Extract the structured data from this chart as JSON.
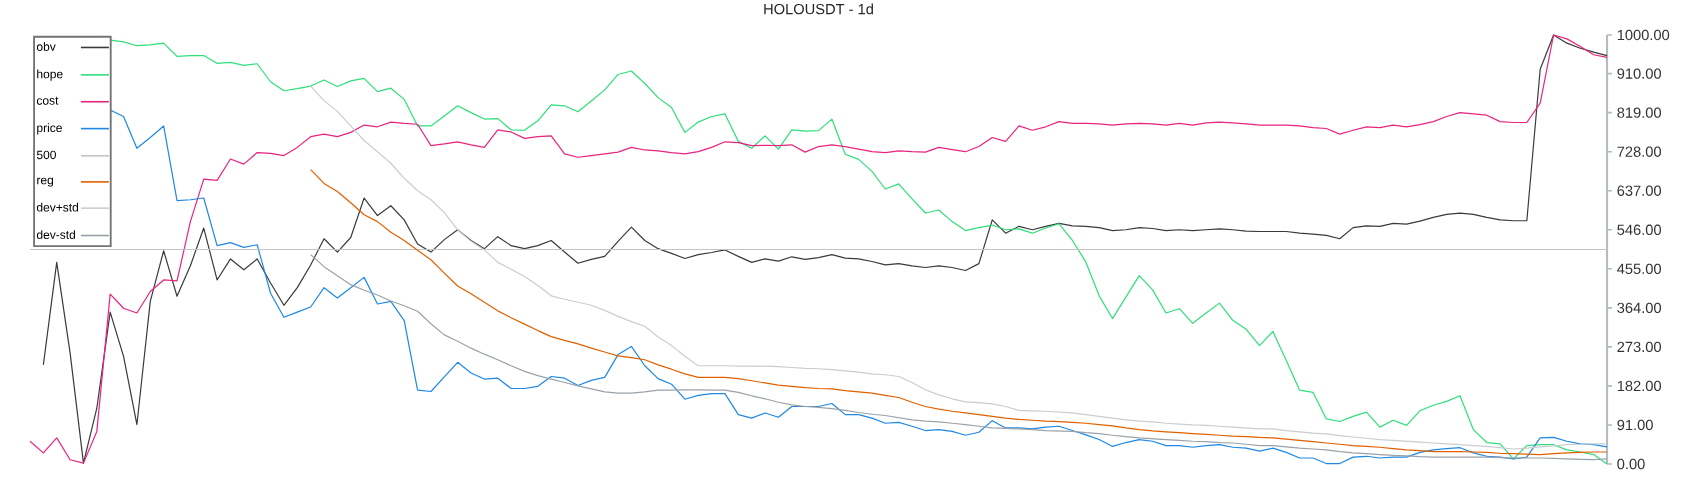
{
  "chart_data": {
    "type": "line",
    "title": "HOLOUSDT - 1d",
    "categories": [
      null,
      null,
      null,
      null,
      null,
      null,
      null,
      null,
      null,
      null,
      null,
      null,
      null,
      null,
      null,
      null,
      null,
      null,
      null,
      null,
      null,
      null,
      null,
      null,
      null,
      null,
      null,
      null,
      null,
      null,
      null,
      null,
      null,
      null,
      null,
      null,
      null,
      null,
      null,
      null,
      null,
      null,
      null,
      null,
      null,
      null,
      null,
      null,
      null,
      null,
      null,
      null,
      null,
      null,
      null,
      null,
      null,
      null,
      null,
      null,
      null,
      null,
      null,
      null,
      null,
      null,
      null,
      null,
      null,
      null,
      null,
      null,
      null,
      null,
      null,
      null,
      null,
      null,
      null,
      null,
      null,
      null,
      null,
      null,
      null,
      null,
      null,
      null,
      null,
      null,
      null,
      null,
      null,
      null,
      null,
      null,
      null,
      null,
      null,
      null,
      null,
      null,
      null,
      null,
      null,
      null,
      null,
      null,
      null,
      null,
      null,
      null,
      null,
      null,
      null,
      null,
      null,
      null,
      null
    ],
    "ylim": [
      0,
      1000
    ],
    "yticks": [
      {
        "value": 0,
        "label": "0.00"
      },
      {
        "value": 91,
        "label": "91.00"
      },
      {
        "value": 182,
        "label": "182.00"
      },
      {
        "value": 273,
        "label": "273.00"
      },
      {
        "value": 364,
        "label": "364.00"
      },
      {
        "value": 455,
        "label": "455.00"
      },
      {
        "value": 546,
        "label": "546.00"
      },
      {
        "value": 637,
        "label": "637.00"
      },
      {
        "value": 728,
        "label": "728.00"
      },
      {
        "value": 819,
        "label": "819.00"
      },
      {
        "value": 910,
        "label": "910.00"
      },
      {
        "value": 1000,
        "label": "1000.00"
      }
    ],
    "tick_labels": "y",
    "legend": "top left",
    "marker": "none",
    "line_style": "solid",
    "series": [
      {
        "name": "obv",
        "color": "#3a3a3a",
        "values": [
          null,
          231,
          470,
          259,
          2,
          130,
          354,
          251,
          92,
          379,
          497,
          391,
          462,
          550,
          429,
          478,
          453,
          478,
          422,
          370,
          411,
          464,
          525,
          494,
          528,
          620,
          579,
          602,
          569,
          513,
          494,
          523,
          546,
          521,
          502,
          530,
          509,
          502,
          509,
          521,
          494,
          468,
          477,
          484,
          519,
          552,
          521,
          502,
          491,
          479,
          488,
          493,
          499,
          484,
          470,
          478,
          473,
          483,
          477,
          481,
          488,
          480,
          478,
          472,
          464,
          467,
          462,
          458,
          462,
          458,
          451,
          467,
          569,
          538,
          554,
          546,
          554,
          561,
          555,
          554,
          551,
          544,
          546,
          551,
          549,
          544,
          546,
          544,
          546,
          548,
          546,
          543,
          542,
          542,
          542,
          538,
          536,
          533,
          525,
          551,
          555,
          554,
          561,
          559,
          566,
          575,
          582,
          585,
          582,
          575,
          569,
          567,
          567,
          920,
          1000,
          981,
          969,
          960,
          952
        ]
      },
      {
        "name": "hope",
        "color": "#2edf7a",
        "values": [
          null,
          null,
          null,
          null,
          null,
          null,
          988,
          984,
          975,
          977,
          981,
          950,
          952,
          952,
          934,
          936,
          929,
          933,
          891,
          870,
          875,
          881,
          895,
          880,
          893,
          899,
          868,
          876,
          850,
          788,
          788,
          811,
          835,
          819,
          804,
          805,
          779,
          778,
          800,
          837,
          835,
          821,
          846,
          872,
          908,
          916,
          887,
          854,
          831,
          773,
          797,
          810,
          816,
          752,
          736,
          765,
          734,
          779,
          776,
          777,
          804,
          722,
          710,
          682,
          641,
          653,
          618,
          585,
          592,
          565,
          544,
          551,
          557,
          546,
          548,
          538,
          550,
          560,
          521,
          471,
          392,
          339,
          389,
          439,
          406,
          352,
          362,
          328,
          352,
          375,
          335,
          314,
          276,
          309,
          241,
          172,
          167,
          105,
          99,
          111,
          121,
          86,
          102,
          90,
          124,
          137,
          146,
          159,
          80,
          50,
          47,
          12,
          43,
          45,
          45,
          33,
          28,
          22,
          0
        ]
      },
      {
        "name": "cost",
        "color": "#e8247e",
        "values": [
          53,
          26,
          61,
          10,
          2,
          76,
          396,
          363,
          352,
          402,
          429,
          427,
          565,
          664,
          661,
          711,
          699,
          726,
          724,
          719,
          738,
          763,
          769,
          763,
          773,
          790,
          786,
          797,
          794,
          792,
          742,
          746,
          751,
          744,
          738,
          779,
          774,
          759,
          763,
          765,
          723,
          715,
          719,
          723,
          727,
          738,
          732,
          730,
          726,
          723,
          728,
          738,
          751,
          749,
          742,
          743,
          742,
          744,
          727,
          740,
          744,
          740,
          734,
          728,
          726,
          730,
          728,
          727,
          738,
          733,
          728,
          740,
          761,
          752,
          788,
          778,
          786,
          798,
          794,
          794,
          793,
          790,
          793,
          794,
          793,
          790,
          794,
          790,
          795,
          797,
          795,
          793,
          790,
          790,
          790,
          788,
          784,
          782,
          769,
          778,
          786,
          784,
          790,
          786,
          791,
          798,
          810,
          819,
          816,
          813,
          798,
          796,
          796,
          841,
          1000,
          991,
          973,
          954,
          948
        ]
      },
      {
        "name": "price",
        "color": "#1e88e5",
        "values": [
          null,
          null,
          null,
          null,
          null,
          null,
          825,
          810,
          736,
          761,
          788,
          614,
          616,
          620,
          509,
          516,
          505,
          511,
          398,
          342,
          354,
          366,
          411,
          387,
          411,
          435,
          373,
          379,
          334,
          172,
          169,
          203,
          237,
          212,
          198,
          200,
          176,
          176,
          181,
          204,
          200,
          183,
          195,
          202,
          255,
          274,
          229,
          199,
          186,
          151,
          160,
          164,
          164,
          115,
          107,
          119,
          109,
          134,
          134,
          134,
          141,
          115,
          115,
          107,
          95,
          97,
          88,
          78,
          80,
          76,
          67,
          74,
          101,
          84,
          84,
          82,
          86,
          88,
          78,
          68,
          57,
          41,
          50,
          57,
          53,
          43,
          43,
          39,
          43,
          45,
          39,
          37,
          30,
          37,
          27,
          14,
          14,
          1,
          1,
          16,
          18,
          14,
          16,
          16,
          27,
          33,
          36,
          38,
          26,
          18,
          16,
          12,
          16,
          61,
          62,
          53,
          47,
          45,
          40
        ]
      },
      {
        "name": "500",
        "color": "#c4c4c4",
        "values": [
          500,
          500,
          500,
          500,
          500,
          500,
          500,
          500,
          500,
          500,
          500,
          500,
          500,
          500,
          500,
          500,
          500,
          500,
          500,
          500,
          500,
          500,
          500,
          500,
          500,
          500,
          500,
          500,
          500,
          500,
          500,
          500,
          500,
          500,
          500,
          500,
          500,
          500,
          500,
          500,
          500,
          500,
          500,
          500,
          500,
          500,
          500,
          500,
          500,
          500,
          500,
          500,
          500,
          500,
          500,
          500,
          500,
          500,
          500,
          500,
          500,
          500,
          500,
          500,
          500,
          500,
          500,
          500,
          500,
          500,
          500,
          500,
          500,
          500,
          500,
          500,
          500,
          500,
          500,
          500,
          500,
          500,
          500,
          500,
          500,
          500,
          500,
          500,
          500,
          500,
          500,
          500,
          500,
          500,
          500,
          500,
          500,
          500,
          500,
          500,
          500,
          500,
          500,
          500,
          500,
          500,
          500,
          500,
          500,
          500,
          500,
          500,
          500,
          500,
          500,
          500,
          500,
          500,
          500
        ]
      },
      {
        "name": "reg",
        "color": "#e06000",
        "values": [
          null,
          null,
          null,
          null,
          null,
          null,
          null,
          null,
          null,
          null,
          null,
          null,
          null,
          null,
          null,
          null,
          null,
          null,
          null,
          null,
          null,
          686,
          654,
          635,
          609,
          581,
          565,
          540,
          521,
          498,
          476,
          445,
          415,
          397,
          377,
          357,
          341,
          326,
          311,
          297,
          288,
          280,
          270,
          261,
          252,
          248,
          243,
          231,
          221,
          210,
          202,
          202,
          202,
          199,
          194,
          189,
          184,
          181,
          178,
          176,
          175,
          171,
          168,
          165,
          160,
          155,
          144,
          134,
          128,
          123,
          119,
          115,
          111,
          107,
          104,
          102,
          100,
          99,
          97,
          95,
          92,
          89,
          84,
          80,
          77,
          75,
          73,
          71,
          69,
          67,
          65,
          64,
          62,
          61,
          58,
          55,
          52,
          49,
          46,
          43,
          41,
          39,
          36,
          33,
          31,
          29,
          29,
          29,
          28,
          27,
          25,
          24,
          23,
          22,
          24,
          26,
          27,
          28,
          28
        ]
      },
      {
        "name": "dev+std",
        "color": "#c9cdd1",
        "values": [
          null,
          null,
          null,
          null,
          null,
          null,
          null,
          null,
          null,
          null,
          null,
          null,
          null,
          null,
          null,
          null,
          null,
          null,
          null,
          null,
          null,
          881,
          847,
          822,
          788,
          754,
          728,
          701,
          666,
          637,
          616,
          586,
          546,
          519,
          499,
          470,
          454,
          437,
          416,
          392,
          384,
          377,
          370,
          358,
          344,
          332,
          321,
          296,
          276,
          251,
          229,
          229,
          229,
          228,
          228,
          228,
          227,
          225,
          223,
          222,
          220,
          217,
          214,
          210,
          208,
          204,
          190,
          173,
          161,
          152,
          145,
          143,
          140,
          134,
          125,
          124,
          123,
          121,
          119,
          115,
          111,
          107,
          103,
          100,
          98,
          95,
          93,
          91,
          90,
          88,
          86,
          84,
          82,
          82,
          78,
          75,
          72,
          70,
          66,
          63,
          60,
          57,
          55,
          53,
          51,
          49,
          47,
          45,
          43,
          41,
          38,
          35,
          37,
          40,
          42,
          45,
          46,
          47,
          47
        ]
      },
      {
        "name": "dev-std",
        "color": "#9aa2a9",
        "values": [
          null,
          null,
          null,
          null,
          null,
          null,
          null,
          null,
          null,
          null,
          null,
          null,
          null,
          null,
          null,
          null,
          null,
          null,
          null,
          null,
          null,
          488,
          460,
          439,
          418,
          405,
          394,
          380,
          369,
          356,
          327,
          301,
          286,
          270,
          256,
          243,
          229,
          216,
          206,
          198,
          190,
          182,
          175,
          168,
          165,
          165,
          168,
          172,
          172,
          173,
          173,
          172,
          172,
          167,
          159,
          152,
          144,
          138,
          134,
          132,
          129,
          125,
          120,
          116,
          113,
          108,
          103,
          100,
          98,
          95,
          92,
          88,
          84,
          83,
          82,
          80,
          78,
          77,
          76,
          73,
          71,
          67,
          64,
          61,
          59,
          57,
          55,
          53,
          52,
          50,
          49,
          46,
          43,
          43,
          40,
          37,
          35,
          33,
          29,
          26,
          24,
          22,
          20,
          19,
          17,
          16,
          16,
          16,
          16,
          16,
          15,
          14,
          14,
          14,
          13,
          12,
          11,
          10,
          12
        ]
      }
    ]
  }
}
